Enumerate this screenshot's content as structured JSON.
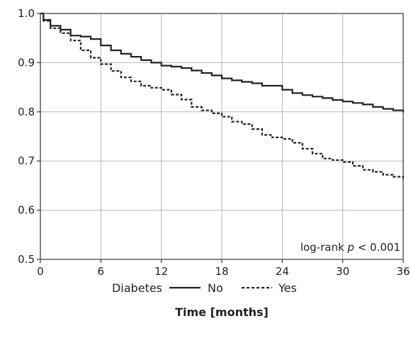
{
  "chart_data": {
    "type": "line",
    "title": "",
    "xlabel": "Time [months]",
    "ylabel": "",
    "xlim": [
      0,
      36
    ],
    "ylim": [
      0.5,
      1.0
    ],
    "x_ticks": [
      0,
      6,
      12,
      18,
      24,
      30,
      36
    ],
    "x_tick_labels": [
      "0",
      "6",
      "12",
      "18",
      "24",
      "30",
      "36"
    ],
    "y_ticks": [
      0.5,
      0.6,
      0.7,
      0.8,
      0.9,
      1.0
    ],
    "y_tick_labels": [
      "0.5",
      "0.6",
      "0.7",
      "0.8",
      "0.9",
      "1.0"
    ],
    "grid": true,
    "legend_title": "Diabetes",
    "legend_position": "bottom",
    "annotation": {
      "prefix": "log-rank ",
      "italic": "p",
      "suffix": " < 0.001"
    },
    "series": [
      {
        "name": "No",
        "line_style": "solid",
        "color": "#222222",
        "x": [
          0,
          0.3,
          1,
          2,
          3,
          4,
          5,
          6,
          7,
          8,
          9,
          10,
          11,
          12,
          13,
          14,
          15,
          16,
          17,
          18,
          19,
          20,
          21,
          22,
          23,
          24,
          25,
          26,
          27,
          28,
          29,
          30,
          31,
          32,
          33,
          34,
          35,
          36
        ],
        "y": [
          1.0,
          0.987,
          0.975,
          0.967,
          0.955,
          0.953,
          0.948,
          0.935,
          0.925,
          0.918,
          0.912,
          0.905,
          0.9,
          0.894,
          0.892,
          0.889,
          0.884,
          0.879,
          0.874,
          0.868,
          0.864,
          0.861,
          0.858,
          0.853,
          0.853,
          0.845,
          0.838,
          0.834,
          0.831,
          0.828,
          0.824,
          0.821,
          0.818,
          0.815,
          0.81,
          0.806,
          0.803,
          0.799
        ]
      },
      {
        "name": "Yes",
        "line_style": "dashed",
        "color": "#222222",
        "x": [
          0,
          0.3,
          1,
          2,
          3,
          4,
          5,
          6,
          7,
          8,
          9,
          10,
          11,
          12,
          13,
          14,
          15,
          16,
          17,
          18,
          19,
          20,
          21,
          22,
          23,
          24,
          25,
          26,
          27,
          28,
          29,
          30,
          31,
          32,
          33,
          34,
          35,
          36
        ],
        "y": [
          1.0,
          0.985,
          0.97,
          0.96,
          0.945,
          0.925,
          0.91,
          0.897,
          0.883,
          0.87,
          0.862,
          0.853,
          0.849,
          0.845,
          0.835,
          0.825,
          0.81,
          0.803,
          0.797,
          0.79,
          0.78,
          0.775,
          0.765,
          0.753,
          0.748,
          0.745,
          0.737,
          0.725,
          0.715,
          0.705,
          0.702,
          0.698,
          0.69,
          0.682,
          0.678,
          0.672,
          0.668,
          0.662
        ]
      }
    ]
  }
}
